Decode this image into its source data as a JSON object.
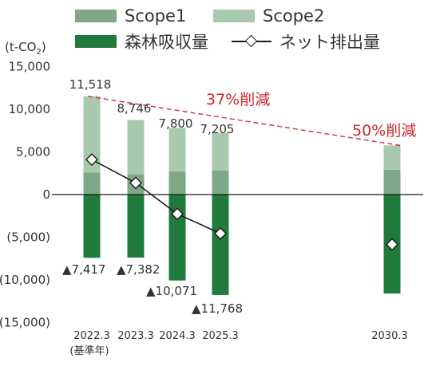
{
  "legend": {
    "scope1": "Scope1",
    "scope2": "Scope2",
    "forest": "森林吸収量",
    "net": "ネット排出量"
  },
  "unit": {
    "prefix": "(t-CO",
    "sub": "2",
    "suffix": ")"
  },
  "colors": {
    "scope1": "#7fa888",
    "scope2": "#a8c9ae",
    "forest": "#1f7a3b",
    "net_line": "#1a1a1a",
    "reduction_line": "#d0303a",
    "reduction_text": "#c8282e",
    "axis_text": "#333333"
  },
  "chart_data": {
    "type": "bar",
    "stacked": true,
    "categories": [
      "2022.3",
      "2023.3",
      "2024.3",
      "2025.3",
      "2030.3"
    ],
    "category_sublabels": [
      "(基準年)",
      "",
      "",
      "",
      ""
    ],
    "series": [
      {
        "name": "Scope1",
        "values": [
          2600,
          2400,
          2700,
          2800,
          2900
        ]
      },
      {
        "name": "Scope2",
        "values": [
          8918,
          6346,
          5100,
          4405,
          2859
        ]
      },
      {
        "name": "森林吸収量",
        "values": [
          -7417,
          -7382,
          -10071,
          -11768,
          -11600
        ]
      },
      {
        "name": "ネット排出量",
        "type": "line-with-markers",
        "marker": "diamond",
        "values": [
          4101,
          1364,
          -2271,
          -4563,
          -5841
        ]
      }
    ],
    "total_labels": [
      "11,518",
      "8,746",
      "7,800",
      "7,205",
      null
    ],
    "forest_labels": [
      "▲7,417",
      "▲7,382",
      "▲10,071",
      "▲11,768",
      null
    ],
    "annotations": [
      {
        "text": "37%削減",
        "at_category": "2025.3"
      },
      {
        "text": "50%削減",
        "at_category": "2030.3"
      }
    ],
    "reduction_line": {
      "from": [
        "2022.3",
        11518
      ],
      "to": [
        "2030.3",
        5759
      ],
      "style": "dashed"
    },
    "yticks": [
      15000,
      10000,
      5000,
      0,
      -5000,
      -10000,
      -15000
    ],
    "ytick_labels": [
      "15,000",
      "10,000",
      "5,000",
      "0",
      "(5,000)",
      "(10,000)",
      "(15,000)"
    ],
    "ylim": [
      -15000,
      15000
    ],
    "grid": false,
    "legend_position": "top"
  }
}
